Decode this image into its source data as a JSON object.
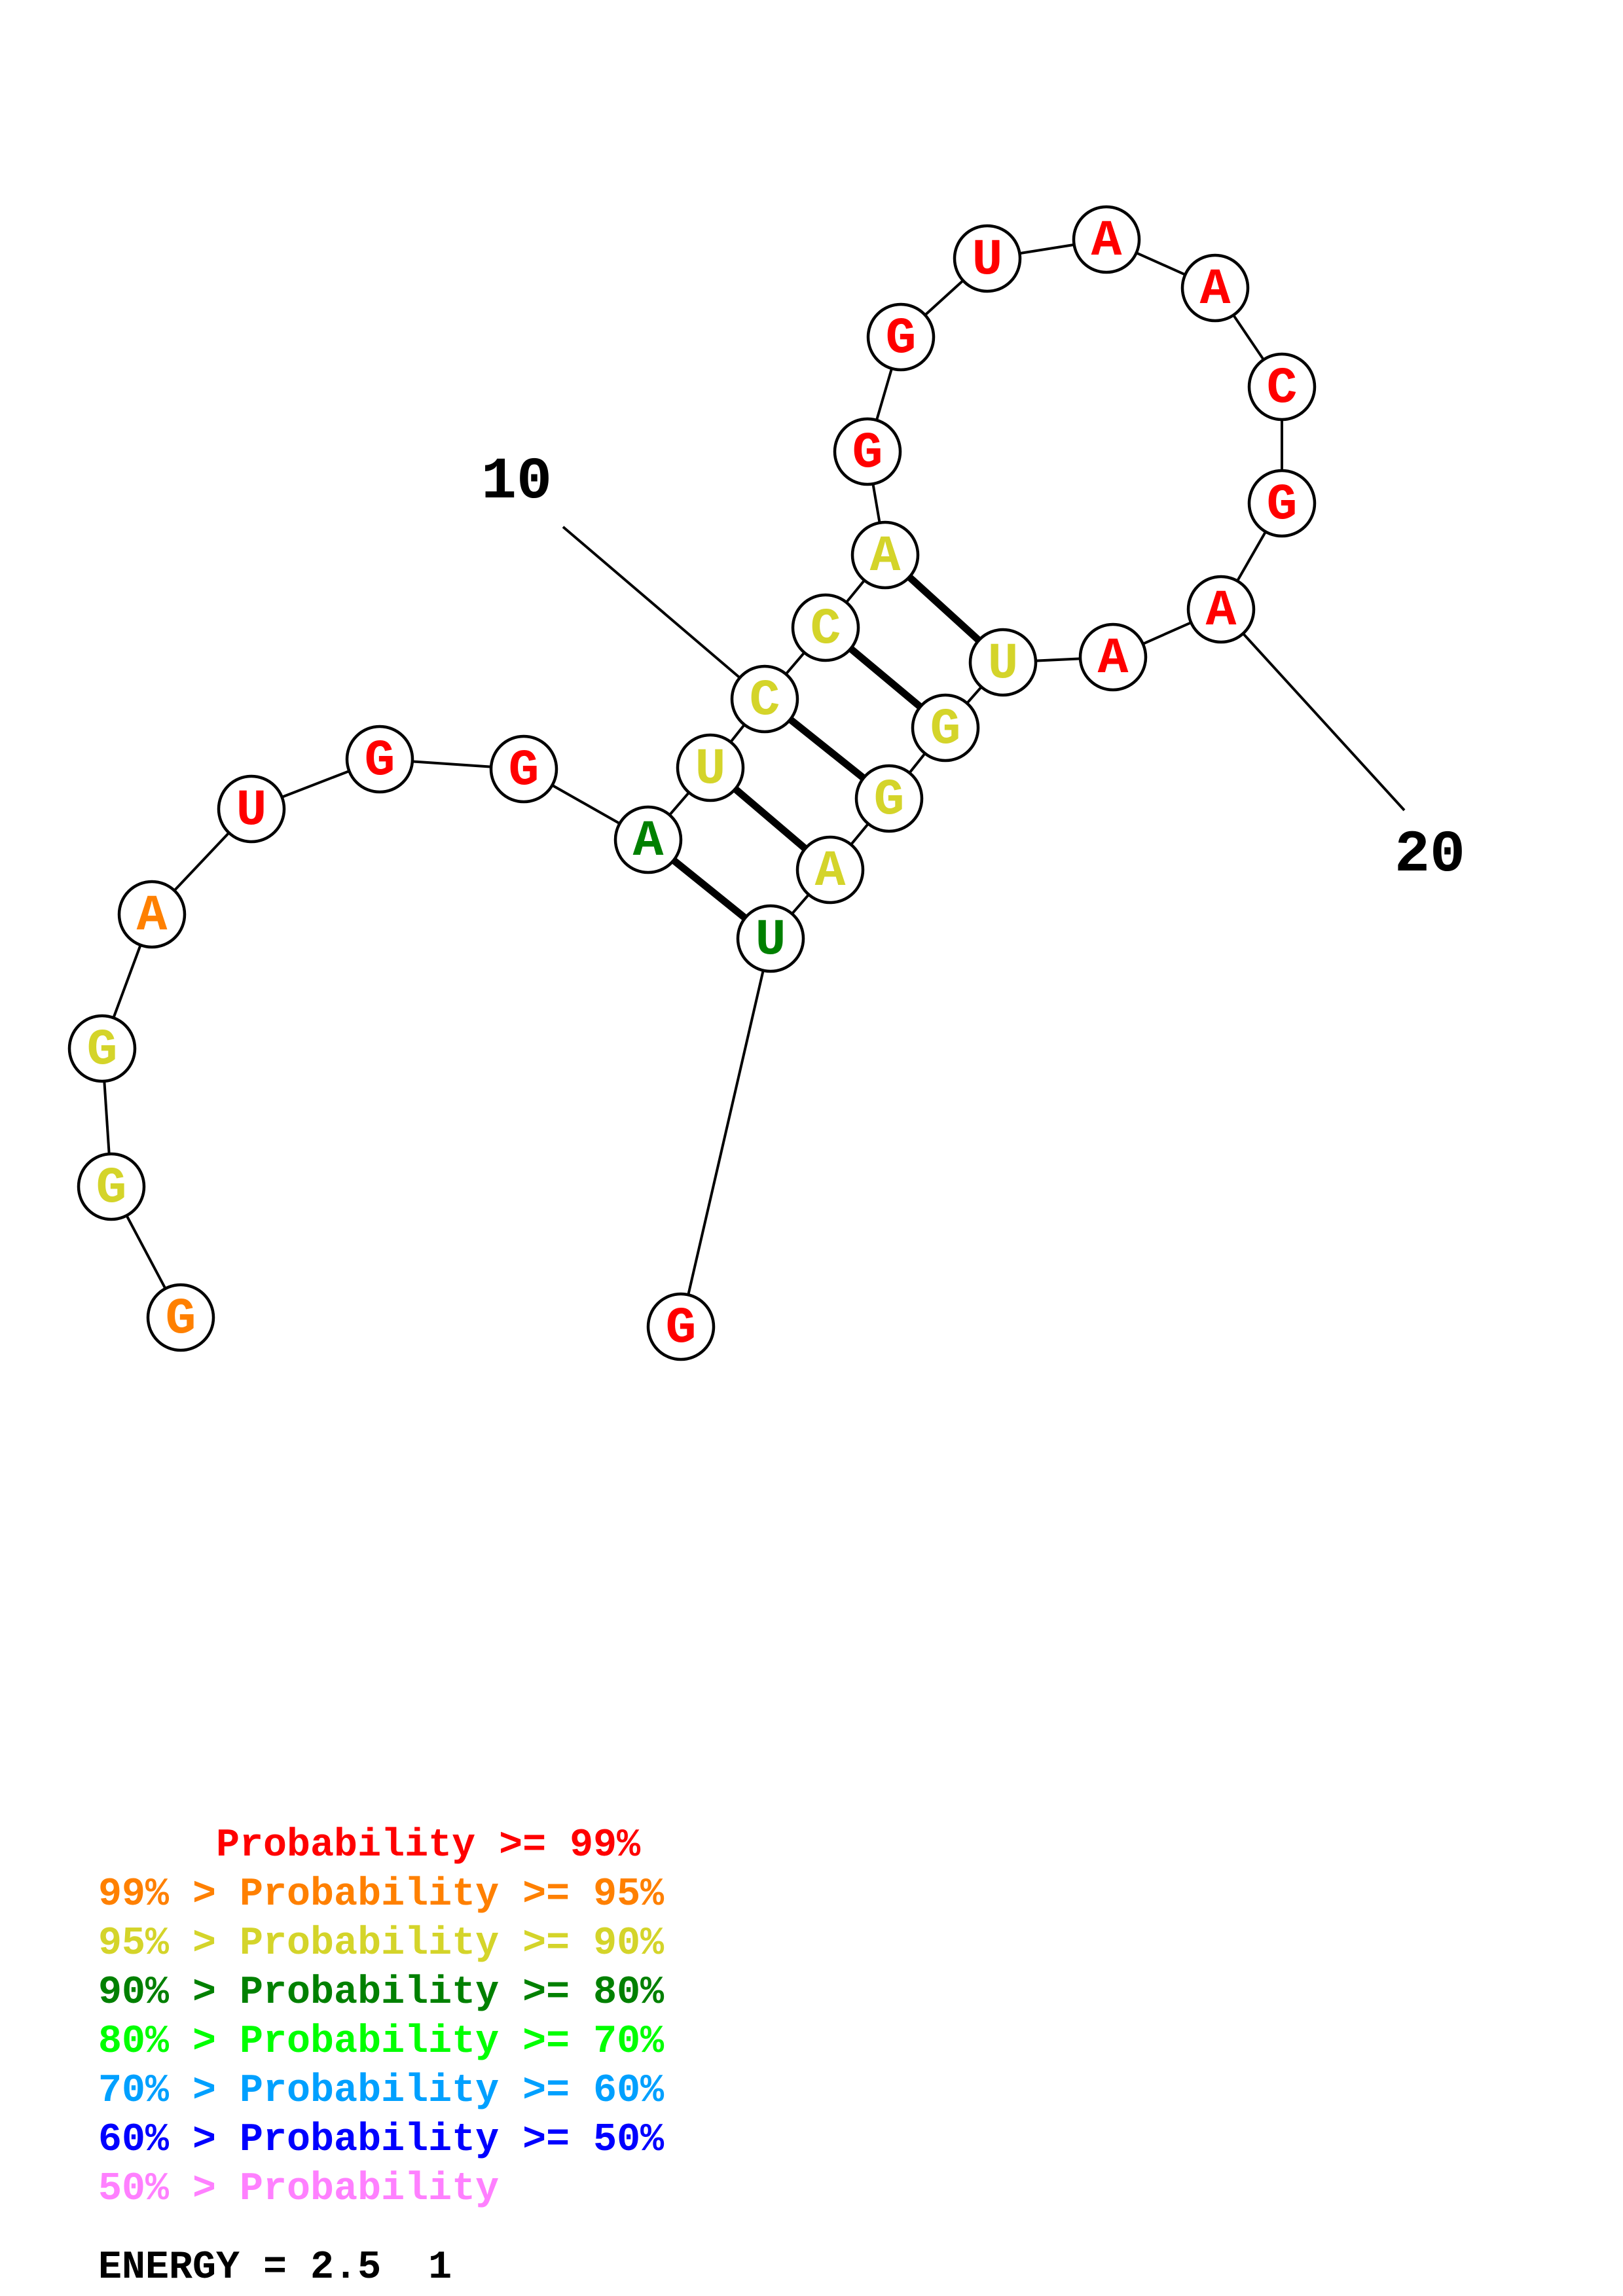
{
  "colors": {
    "p99": "#ff0000",
    "p95": "#ff8000",
    "p90": "#d4d42a",
    "p80": "#008000",
    "p70": "#00ff00",
    "p60": "#00a0ff",
    "p50": "#0000ff",
    "plt50": "#ff80ff"
  },
  "structure": {
    "nucleotides": [
      {
        "index": 1,
        "base": "G",
        "prob_class": "p95"
      },
      {
        "index": 2,
        "base": "G",
        "prob_class": "p90"
      },
      {
        "index": 3,
        "base": "G",
        "prob_class": "p90"
      },
      {
        "index": 4,
        "base": "A",
        "prob_class": "p95"
      },
      {
        "index": 5,
        "base": "U",
        "prob_class": "p99"
      },
      {
        "index": 6,
        "base": "G",
        "prob_class": "p99"
      },
      {
        "index": 7,
        "base": "G",
        "prob_class": "p99"
      },
      {
        "index": 8,
        "base": "A",
        "prob_class": "p80"
      },
      {
        "index": 9,
        "base": "U",
        "prob_class": "p90"
      },
      {
        "index": 10,
        "base": "C",
        "prob_class": "p90"
      },
      {
        "index": 11,
        "base": "C",
        "prob_class": "p90"
      },
      {
        "index": 12,
        "base": "A",
        "prob_class": "p90"
      },
      {
        "index": 13,
        "base": "G",
        "prob_class": "p99"
      },
      {
        "index": 14,
        "base": "G",
        "prob_class": "p99"
      },
      {
        "index": 15,
        "base": "U",
        "prob_class": "p99"
      },
      {
        "index": 16,
        "base": "A",
        "prob_class": "p99"
      },
      {
        "index": 17,
        "base": "A",
        "prob_class": "p99"
      },
      {
        "index": 18,
        "base": "C",
        "prob_class": "p99"
      },
      {
        "index": 19,
        "base": "G",
        "prob_class": "p99"
      },
      {
        "index": 20,
        "base": "A",
        "prob_class": "p99"
      },
      {
        "index": 21,
        "base": "A",
        "prob_class": "p99"
      },
      {
        "index": 22,
        "base": "U",
        "prob_class": "p90"
      },
      {
        "index": 23,
        "base": "G",
        "prob_class": "p90"
      },
      {
        "index": 24,
        "base": "G",
        "prob_class": "p90"
      },
      {
        "index": 25,
        "base": "A",
        "prob_class": "p90"
      },
      {
        "index": 26,
        "base": "U",
        "prob_class": "p80"
      },
      {
        "index": 27,
        "base": "G",
        "prob_class": "p99"
      }
    ],
    "base_pairs": [
      [
        8,
        26
      ],
      [
        9,
        25
      ],
      [
        10,
        24
      ],
      [
        11,
        23
      ],
      [
        12,
        22
      ]
    ],
    "position_labels": [
      {
        "index": 10,
        "text": "10"
      },
      {
        "index": 20,
        "text": "20"
      }
    ]
  },
  "legend": [
    {
      "text": "     Probability >= 99%",
      "color_key": "p99"
    },
    {
      "text": "99% > Probability >= 95%",
      "color_key": "p95"
    },
    {
      "text": "95% > Probability >= 90%",
      "color_key": "p90"
    },
    {
      "text": "90% > Probability >= 80%",
      "color_key": "p80"
    },
    {
      "text": "80% > Probability >= 70%",
      "color_key": "p70"
    },
    {
      "text": "70% > Probability >= 60%",
      "color_key": "p60"
    },
    {
      "text": "60% > Probability >= 50%",
      "color_key": "p50"
    },
    {
      "text": "50% > Probability",
      "color_key": "plt50"
    }
  ],
  "energy_text": "ENERGY = 2.5  1"
}
